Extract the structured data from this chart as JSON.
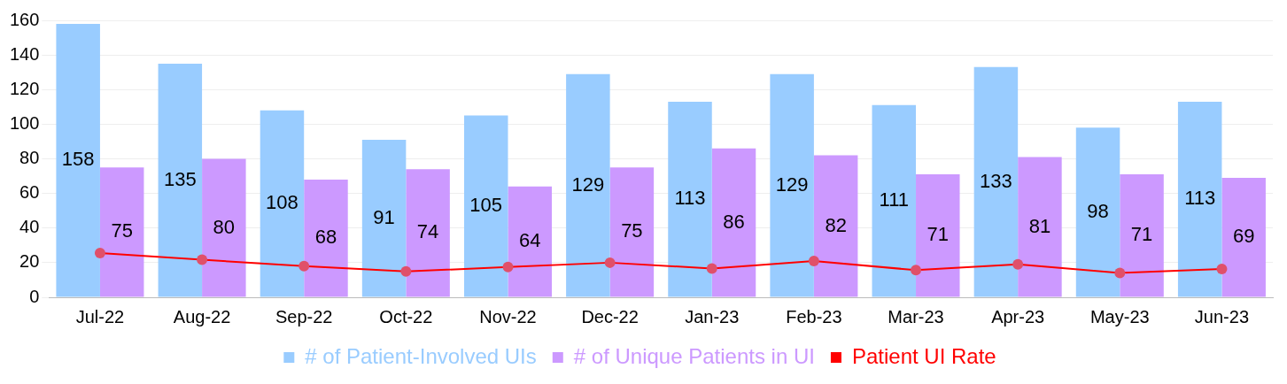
{
  "chart_data": {
    "type": "bar",
    "categories": [
      "Jul-22",
      "Aug-22",
      "Sep-22",
      "Oct-22",
      "Nov-22",
      "Dec-22",
      "Jan-23",
      "Feb-23",
      "Mar-23",
      "Apr-23",
      "May-23",
      "Jun-23"
    ],
    "series": [
      {
        "name": "# of Patient-Involved UIs",
        "color": "#99ccff",
        "values": [
          158,
          135,
          108,
          91,
          105,
          129,
          113,
          129,
          111,
          133,
          98,
          113
        ],
        "value_labels": [
          "158",
          "135",
          "108",
          "91",
          "105",
          "129",
          "113",
          "129",
          "111",
          "133",
          "98",
          "113"
        ]
      },
      {
        "name": "# of Unique Patients in UI",
        "color": "#cc99ff",
        "values": [
          75,
          80,
          68,
          74,
          64,
          75,
          86,
          82,
          71,
          81,
          71,
          69
        ],
        "value_labels": [
          "75",
          "80",
          "68",
          "74",
          "64",
          "75",
          "86",
          "82",
          "71",
          "81",
          "71",
          "69"
        ]
      },
      {
        "name": "Patient UI Rate",
        "type": "line",
        "color": "#ff0000",
        "marker": "circle",
        "values": [
          25.5,
          21.7,
          18,
          14.9,
          17.5,
          20,
          16.6,
          20.9,
          15.7,
          19.1,
          14.1,
          16.4
        ]
      }
    ],
    "ylim": [
      0,
      160
    ],
    "yticks": [
      0,
      20,
      40,
      60,
      80,
      100,
      120,
      140,
      160
    ],
    "grid": "y",
    "legend": "bottom"
  }
}
